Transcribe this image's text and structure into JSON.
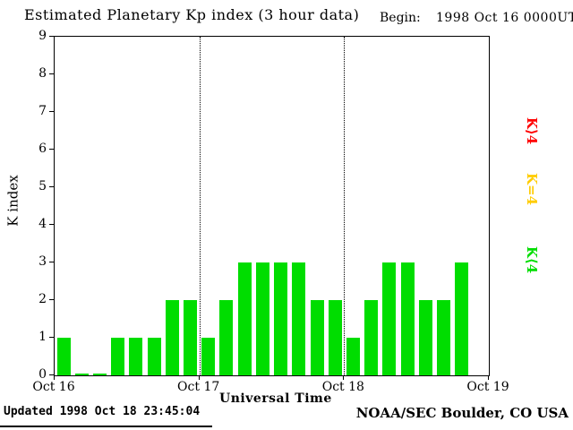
{
  "header": {
    "begin_label": "Begin:",
    "begin_value": "1998 Oct 16 0000UT"
  },
  "chart_data": {
    "type": "bar",
    "title": "Estimated Planetary Kp index (3 hour data)",
    "xlabel": "Universal Time",
    "ylabel": "K index",
    "ylim": [
      0,
      9
    ],
    "y_ticks": [
      0,
      1,
      2,
      3,
      4,
      5,
      6,
      7,
      8,
      9
    ],
    "x_tick_labels": [
      "Oct 16",
      "Oct 17",
      "Oct 18",
      "Oct 19"
    ],
    "slots_per_day": 8,
    "hours_per_slot": 3,
    "grid": "dotted vertical lines at day boundaries",
    "days": [
      {
        "date": "Oct 16",
        "values": [
          1,
          0,
          0,
          1,
          1,
          1,
          2,
          2
        ]
      },
      {
        "date": "Oct 17",
        "values": [
          1,
          2,
          3,
          3,
          3,
          3,
          2,
          2
        ]
      },
      {
        "date": "Oct 18",
        "values": [
          1,
          2,
          3,
          3,
          2,
          2,
          3,
          null
        ]
      }
    ],
    "colors": {
      "low": "#00dd00",
      "mid": "#ffcc00",
      "high": "#ff0000"
    },
    "legend_position": "right",
    "legend": [
      {
        "label": "K⟩4",
        "color": "#ff0000"
      },
      {
        "label": "K=4",
        "color": "#ffcc00"
      },
      {
        "label": "K⟨4",
        "color": "#00dd00"
      }
    ]
  },
  "footer": {
    "updated": "Updated 1998 Oct 18 23:45:04",
    "source": "NOAA/SEC Boulder, CO USA"
  }
}
